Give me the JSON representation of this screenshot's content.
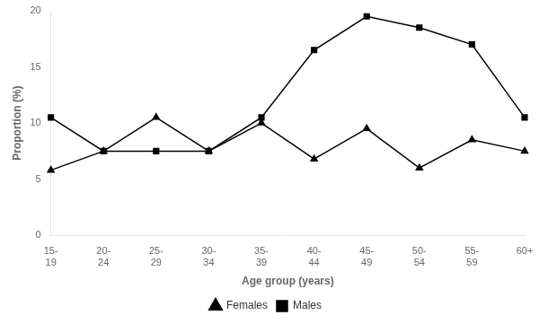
{
  "chart_data": {
    "type": "line",
    "categories": [
      "15-\n19",
      "20-\n24",
      "25-\n29",
      "30-\n34",
      "35-\n39",
      "40-\n44",
      "45-\n49",
      "50-\n54",
      "55-\n59",
      "60+"
    ],
    "series": [
      {
        "name": "Females",
        "color": "black",
        "marker": "triangle",
        "line_style": "solid",
        "values": [
          5.8,
          7.5,
          10.5,
          7.5,
          10.0,
          6.8,
          9.5,
          6.0,
          8.5,
          7.5
        ]
      },
      {
        "name": "Males",
        "color": "black",
        "marker": "square",
        "line_style": "solid",
        "values": [
          10.5,
          7.5,
          7.5,
          7.5,
          10.5,
          16.5,
          19.5,
          18.5,
          17.0,
          10.5
        ]
      }
    ],
    "xlabel": "Age group (years)",
    "ylabel": "Proportion (%)",
    "ylim": [
      0,
      20
    ],
    "yticks": [
      0,
      5,
      10,
      15,
      20
    ],
    "grid": false,
    "legend": "bottom"
  }
}
